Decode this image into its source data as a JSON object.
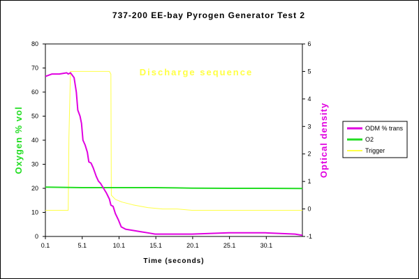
{
  "chart_data": {
    "type": "line",
    "title": "737-200 EE-bay Pyrogen Generator Test 2",
    "xlabel": "Time (seconds)",
    "ylabel_left": "Oxygen % vol",
    "ylabel_right": "Optical density",
    "annotation": "Discharge sequence",
    "xlim": [
      0.1,
      35
    ],
    "ylim_left": [
      0,
      80
    ],
    "ylim_right": [
      -1,
      6
    ],
    "x_ticks": [
      "0.1",
      "5.1",
      "10.1",
      "15.1",
      "20.1",
      "25.1",
      "30.1"
    ],
    "y_left_ticks": [
      "0",
      "10",
      "20",
      "30",
      "40",
      "50",
      "60",
      "70",
      "80"
    ],
    "y_right_ticks": [
      "-1",
      "0",
      "1",
      "2",
      "3",
      "4",
      "5",
      "6"
    ],
    "grid": false,
    "legend_position": "right",
    "colors": {
      "odm": "#e000e0",
      "o2": "#22dd22",
      "trigger": "#ffff44",
      "plot_bg": "#ffffff",
      "axis": "#000000"
    },
    "series": [
      {
        "name": "ODM % trans",
        "axis": "left",
        "x": [
          0.1,
          1.0,
          2.0,
          3.0,
          3.2,
          3.5,
          4.0,
          4.3,
          4.5,
          4.8,
          5.0,
          5.2,
          5.5,
          5.8,
          6.0,
          6.3,
          6.6,
          7.0,
          7.3,
          7.6,
          8.0,
          8.4,
          8.8,
          9.0,
          9.3,
          9.6,
          10.0,
          10.4,
          11.0,
          12.0,
          13.0,
          14.0,
          15.0,
          17.0,
          20.0,
          25.0,
          30.0,
          34.0,
          35.0
        ],
        "y": [
          66.5,
          67.5,
          67.5,
          68.0,
          67.5,
          68.0,
          66.0,
          60.0,
          52.5,
          50.0,
          47.0,
          40.0,
          38.0,
          35.0,
          31.0,
          30.5,
          28.5,
          25.0,
          23.0,
          22.0,
          20.0,
          18.0,
          15.5,
          13.0,
          12.5,
          9.5,
          7.0,
          4.0,
          3.0,
          2.5,
          2.0,
          1.5,
          1.0,
          1.0,
          1.0,
          1.5,
          1.5,
          1.0,
          0.5
        ]
      },
      {
        "name": "O2",
        "axis": "left",
        "x": [
          0.1,
          5.0,
          10.0,
          15.0,
          20.0,
          25.0,
          30.0,
          35.0
        ],
        "y": [
          20.5,
          20.3,
          20.3,
          20.3,
          20.1,
          20.0,
          20.0,
          19.9
        ]
      },
      {
        "name": "Trigger",
        "axis": "right",
        "x": [
          0.1,
          3.2,
          3.3,
          3.5,
          8.8,
          9.0,
          9.05,
          9.6,
          10.5,
          12.0,
          14.0,
          16.0,
          18.0,
          20.0,
          25.0,
          30.0,
          35.0
        ],
        "y": [
          -0.05,
          -0.05,
          2.6,
          5.0,
          5.0,
          4.9,
          0.5,
          0.35,
          0.25,
          0.15,
          0.05,
          0.0,
          0.0,
          -0.05,
          -0.05,
          -0.05,
          -0.05
        ]
      }
    ]
  }
}
